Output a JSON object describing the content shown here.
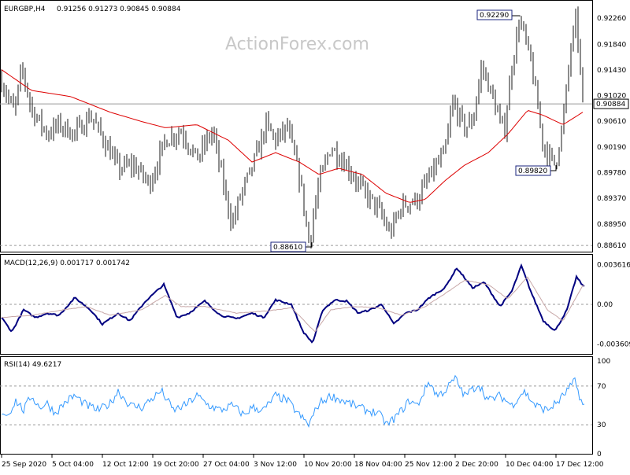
{
  "header": {
    "symbol": "EURGBP,H4",
    "ohlc": "0.91256 0.91273 0.90845 0.90884",
    "watermark": "ActionForex.com"
  },
  "colors": {
    "bars": "#1a1a1a",
    "ma": "#dd0000",
    "macd": "#000080",
    "signal": "#c8a8a8",
    "rsi": "#3399ff",
    "grid": "#9a9a9a"
  },
  "panels": {
    "price": {
      "y_ticks": [
        "0.92260",
        "0.91840",
        "0.91430",
        "0.91020",
        "0.90610",
        "0.90190",
        "0.89780",
        "0.89370",
        "0.88950",
        "0.88610"
      ],
      "current_price": "0.90884",
      "annotations": {
        "high": "0.92290",
        "low1": "0.88610",
        "low2": "0.89820"
      }
    },
    "macd": {
      "label": "MACD(12,26,9) 0.001717 0.001742",
      "y_ticks": [
        "0.003616",
        "0.00",
        "-0.003609"
      ]
    },
    "rsi": {
      "label": "RSI(14) 49.6217",
      "y_ticks": [
        "100",
        "70",
        "30",
        "0"
      ]
    }
  },
  "x_labels": [
    "25 Sep 2020",
    "5 Oct 04:00",
    "12 Oct 12:00",
    "19 Oct 20:00",
    "27 Oct 04:00",
    "3 Nov 12:00",
    "10 Nov 20:00",
    "18 Nov 04:00",
    "25 Nov 12:00",
    "2 Dec 20:00",
    "10 Dec 04:00",
    "17 Dec 12:00"
  ],
  "chart_data": {
    "type": "line",
    "title": "EURGBP,H4",
    "x_range": [
      "25 Sep 2020",
      "22 Dec 2020"
    ],
    "price": {
      "ylim": [
        0.8851,
        0.9254
      ],
      "anchors": [
        [
          0,
          0.913
        ],
        [
          18,
          0.9075
        ],
        [
          28,
          0.9145
        ],
        [
          40,
          0.908
        ],
        [
          60,
          0.904
        ],
        [
          75,
          0.9055
        ],
        [
          95,
          0.904
        ],
        [
          115,
          0.907
        ],
        [
          130,
          0.9035
        ],
        [
          150,
          0.8985
        ],
        [
          170,
          0.899
        ],
        [
          190,
          0.896
        ],
        [
          210,
          0.903
        ],
        [
          230,
          0.9045
        ],
        [
          250,
          0.9
        ],
        [
          270,
          0.9045
        ],
        [
          285,
          0.895
        ],
        [
          295,
          0.8895
        ],
        [
          305,
          0.894
        ],
        [
          320,
          0.8985
        ],
        [
          338,
          0.9055
        ],
        [
          350,
          0.903
        ],
        [
          365,
          0.905
        ],
        [
          382,
          0.896
        ],
        [
          392,
          0.8866
        ],
        [
          405,
          0.896
        ],
        [
          420,
          0.902
        ],
        [
          440,
          0.899
        ],
        [
          460,
          0.895
        ],
        [
          480,
          0.892
        ],
        [
          495,
          0.888
        ],
        [
          510,
          0.8925
        ],
        [
          530,
          0.8935
        ],
        [
          545,
          0.897
        ],
        [
          565,
          0.901
        ],
        [
          575,
          0.909
        ],
        [
          590,
          0.905
        ],
        [
          600,
          0.906
        ],
        [
          612,
          0.915
        ],
        [
          625,
          0.91
        ],
        [
          640,
          0.904
        ],
        [
          650,
          0.915
        ],
        [
          660,
          0.9226
        ],
        [
          675,
          0.915
        ],
        [
          690,
          0.902
        ],
        [
          705,
          0.899
        ],
        [
          715,
          0.906
        ],
        [
          725,
          0.918
        ],
        [
          732,
          0.9225
        ],
        [
          740,
          0.9088
        ]
      ],
      "ma_anchors": [
        [
          0,
          0.9145
        ],
        [
          40,
          0.911
        ],
        [
          90,
          0.91
        ],
        [
          140,
          0.9075
        ],
        [
          180,
          0.906
        ],
        [
          210,
          0.905
        ],
        [
          250,
          0.9055
        ],
        [
          290,
          0.903
        ],
        [
          320,
          0.8995
        ],
        [
          350,
          0.901
        ],
        [
          380,
          0.8995
        ],
        [
          405,
          0.8975
        ],
        [
          430,
          0.8985
        ],
        [
          460,
          0.8975
        ],
        [
          490,
          0.8945
        ],
        [
          520,
          0.893
        ],
        [
          540,
          0.8935
        ],
        [
          565,
          0.8965
        ],
        [
          590,
          0.899
        ],
        [
          620,
          0.901
        ],
        [
          645,
          0.904
        ],
        [
          670,
          0.9078
        ],
        [
          690,
          0.907
        ],
        [
          715,
          0.9055
        ],
        [
          740,
          0.9075
        ]
      ]
    },
    "macd": {
      "ylim": [
        -0.0045,
        0.0045
      ],
      "macd_anchors": [
        [
          0,
          -0.001
        ],
        [
          15,
          -0.0025
        ],
        [
          30,
          -0.0005
        ],
        [
          45,
          -0.0012
        ],
        [
          60,
          -0.0008
        ],
        [
          75,
          -0.001
        ],
        [
          95,
          0.0006
        ],
        [
          115,
          -0.0005
        ],
        [
          130,
          -0.0018
        ],
        [
          150,
          -0.0008
        ],
        [
          165,
          -0.0015
        ],
        [
          185,
          0.0003
        ],
        [
          208,
          0.0018
        ],
        [
          225,
          -0.0012
        ],
        [
          240,
          -0.0008
        ],
        [
          260,
          0.0003
        ],
        [
          280,
          -0.001
        ],
        [
          300,
          -0.0013
        ],
        [
          320,
          -0.0008
        ],
        [
          335,
          -0.0012
        ],
        [
          350,
          0.0004
        ],
        [
          370,
          0.0
        ],
        [
          385,
          -0.0025
        ],
        [
          397,
          -0.0035
        ],
        [
          410,
          -0.0005
        ],
        [
          425,
          0.0004
        ],
        [
          440,
          0.0003
        ],
        [
          455,
          -0.0008
        ],
        [
          470,
          -0.0005
        ],
        [
          485,
          0.0
        ],
        [
          500,
          -0.0018
        ],
        [
          515,
          -0.0008
        ],
        [
          530,
          -0.0005
        ],
        [
          545,
          0.0006
        ],
        [
          565,
          0.0015
        ],
        [
          580,
          0.0033
        ],
        [
          600,
          0.0015
        ],
        [
          615,
          0.002
        ],
        [
          635,
          -0.0002
        ],
        [
          650,
          0.0012
        ],
        [
          662,
          0.0035
        ],
        [
          675,
          0.001
        ],
        [
          690,
          -0.0015
        ],
        [
          705,
          -0.0024
        ],
        [
          720,
          -0.0005
        ],
        [
          732,
          0.0025
        ],
        [
          740,
          0.0017
        ]
      ],
      "signal_anchors": [
        [
          0,
          -0.0012
        ],
        [
          40,
          -0.001
        ],
        [
          80,
          -0.0005
        ],
        [
          110,
          -0.0002
        ],
        [
          140,
          -0.001
        ],
        [
          180,
          -0.0005
        ],
        [
          210,
          0.0008
        ],
        [
          230,
          -0.0002
        ],
        [
          260,
          -0.0002
        ],
        [
          300,
          -0.0008
        ],
        [
          340,
          -0.0006
        ],
        [
          370,
          -0.0003
        ],
        [
          400,
          -0.0025
        ],
        [
          420,
          -0.0005
        ],
        [
          450,
          -0.0002
        ],
        [
          480,
          -0.0003
        ],
        [
          510,
          -0.001
        ],
        [
          540,
          -0.0002
        ],
        [
          570,
          0.0012
        ],
        [
          590,
          0.0022
        ],
        [
          620,
          0.0018
        ],
        [
          645,
          0.0005
        ],
        [
          670,
          0.0025
        ],
        [
          695,
          -0.0005
        ],
        [
          715,
          -0.0015
        ],
        [
          740,
          0.0017
        ]
      ]
    },
    "rsi": {
      "ylim": [
        0,
        100
      ],
      "levels": [
        70,
        30
      ],
      "anchors": [
        [
          0,
          45
        ],
        [
          10,
          40
        ],
        [
          20,
          55
        ],
        [
          30,
          45
        ],
        [
          40,
          60
        ],
        [
          50,
          48
        ],
        [
          60,
          52
        ],
        [
          70,
          42
        ],
        [
          85,
          55
        ],
        [
          95,
          60
        ],
        [
          110,
          50
        ],
        [
          125,
          45
        ],
        [
          140,
          52
        ],
        [
          150,
          65
        ],
        [
          165,
          50
        ],
        [
          180,
          48
        ],
        [
          190,
          55
        ],
        [
          205,
          65
        ],
        [
          220,
          45
        ],
        [
          235,
          50
        ],
        [
          250,
          60
        ],
        [
          265,
          50
        ],
        [
          280,
          45
        ],
        [
          295,
          50
        ],
        [
          310,
          40
        ],
        [
          320,
          48
        ],
        [
          335,
          45
        ],
        [
          350,
          60
        ],
        [
          365,
          55
        ],
        [
          380,
          40
        ],
        [
          392,
          30
        ],
        [
          405,
          52
        ],
        [
          420,
          60
        ],
        [
          435,
          55
        ],
        [
          450,
          50
        ],
        [
          465,
          45
        ],
        [
          480,
          42
        ],
        [
          492,
          30
        ],
        [
          505,
          40
        ],
        [
          520,
          55
        ],
        [
          530,
          50
        ],
        [
          545,
          75
        ],
        [
          555,
          60
        ],
        [
          565,
          65
        ],
        [
          578,
          78
        ],
        [
          590,
          60
        ],
        [
          608,
          72
        ],
        [
          620,
          55
        ],
        [
          635,
          60
        ],
        [
          650,
          50
        ],
        [
          665,
          65
        ],
        [
          680,
          50
        ],
        [
          695,
          45
        ],
        [
          710,
          55
        ],
        [
          720,
          65
        ],
        [
          730,
          75
        ],
        [
          740,
          50
        ]
      ]
    }
  }
}
